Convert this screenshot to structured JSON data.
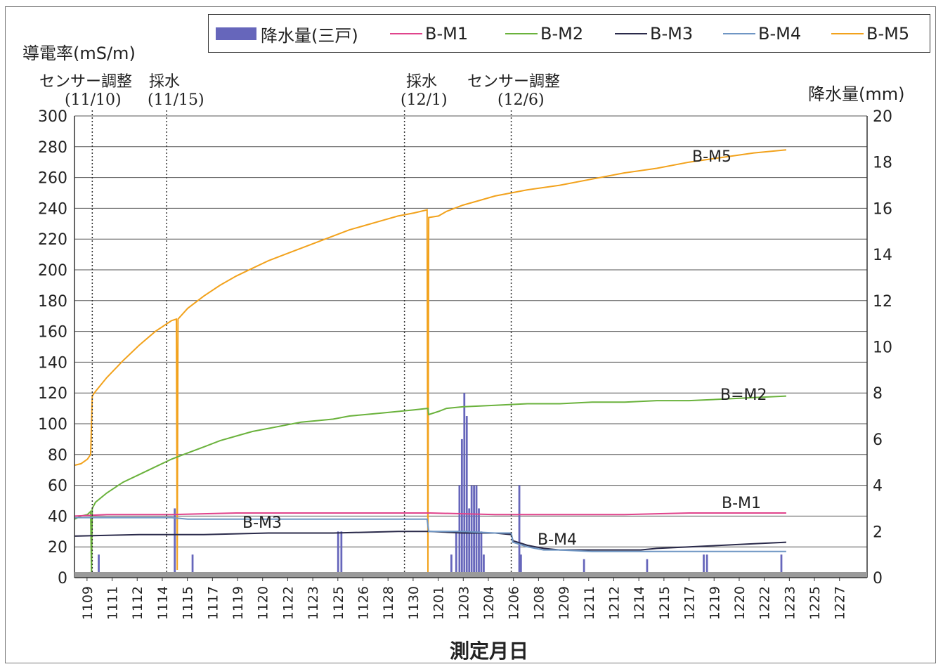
{
  "chart_data": {
    "type": "line",
    "title": "",
    "ylabel": "導電率(mS/m)",
    "y2label": "降水量(mm)",
    "xlabel": "測定月日",
    "ylim": [
      0,
      300
    ],
    "y2lim": [
      0,
      20
    ],
    "yticks": [
      0,
      20,
      40,
      60,
      80,
      100,
      120,
      140,
      160,
      180,
      200,
      220,
      240,
      260,
      280,
      300
    ],
    "y2ticks": [
      0,
      2,
      4,
      6,
      8,
      10,
      12,
      14,
      16,
      18,
      20
    ],
    "x_categories": [
      "1109",
      "1111",
      "1112",
      "1114",
      "1115",
      "1117",
      "1119",
      "1120",
      "1122",
      "1123",
      "1125",
      "1126",
      "1128",
      "1130",
      "1201",
      "1203",
      "1204",
      "1206",
      "1208",
      "1209",
      "1211",
      "1212",
      "1214",
      "1215",
      "1217",
      "1219",
      "1220",
      "1222",
      "1223",
      "1225",
      "1227"
    ],
    "x_domain": [
      0,
      49
    ],
    "grid": true,
    "legend_position": "top",
    "legend": [
      {
        "name": "降水量(三戸)",
        "kind": "bar",
        "color": "#6666bb"
      },
      {
        "name": "B-M1",
        "kind": "line",
        "color": "#e0448c"
      },
      {
        "name": "B-M2",
        "kind": "line",
        "color": "#6ab23c"
      },
      {
        "name": "B-M3",
        "kind": "line",
        "color": "#2a2a4a"
      },
      {
        "name": "B-M4",
        "kind": "line",
        "color": "#6f96c4"
      },
      {
        "name": "B-M5",
        "kind": "line",
        "color": "#f2a21c"
      }
    ],
    "series": [
      {
        "name": "B-M5",
        "color": "#f2a21c",
        "points": [
          [
            0,
            73
          ],
          [
            0.4,
            74
          ],
          [
            0.8,
            77
          ],
          [
            1.0,
            80
          ],
          [
            1.1,
            118
          ],
          [
            1.3,
            121
          ],
          [
            2,
            130
          ],
          [
            3,
            141
          ],
          [
            4,
            151
          ],
          [
            5,
            160
          ],
          [
            6,
            167
          ],
          [
            6.3,
            168
          ],
          [
            6.35,
            5
          ],
          [
            6.4,
            168
          ],
          [
            7,
            175
          ],
          [
            8,
            183
          ],
          [
            9,
            190
          ],
          [
            10,
            196
          ],
          [
            11,
            201
          ],
          [
            12,
            206
          ],
          [
            13,
            210
          ],
          [
            14,
            214
          ],
          [
            15,
            218
          ],
          [
            16,
            222
          ],
          [
            17,
            226
          ],
          [
            18,
            229
          ],
          [
            19,
            232
          ],
          [
            20,
            235
          ],
          [
            21,
            237
          ],
          [
            21.8,
            239
          ],
          [
            21.85,
            3
          ],
          [
            21.9,
            234
          ],
          [
            22.5,
            235
          ],
          [
            23,
            238
          ],
          [
            24,
            242
          ],
          [
            25,
            245
          ],
          [
            26,
            248
          ],
          [
            27,
            250
          ],
          [
            28,
            252
          ],
          [
            30,
            255
          ],
          [
            32,
            259
          ],
          [
            34,
            263
          ],
          [
            36,
            266
          ],
          [
            38,
            270
          ],
          [
            40,
            273
          ],
          [
            42,
            276
          ],
          [
            44,
            278
          ]
        ]
      },
      {
        "name": "B-M2",
        "color": "#6ab23c",
        "points": [
          [
            0,
            38
          ],
          [
            0.4,
            40
          ],
          [
            0.8,
            41
          ],
          [
            1.0,
            43
          ],
          [
            1.05,
            3
          ],
          [
            1.1,
            45
          ],
          [
            1.3,
            49
          ],
          [
            2,
            55
          ],
          [
            3,
            62
          ],
          [
            4,
            67
          ],
          [
            5,
            72
          ],
          [
            6,
            77
          ],
          [
            7,
            81
          ],
          [
            8,
            85
          ],
          [
            9,
            89
          ],
          [
            10,
            92
          ],
          [
            11,
            95
          ],
          [
            12,
            97
          ],
          [
            13,
            99
          ],
          [
            14,
            101
          ],
          [
            15,
            102
          ],
          [
            16,
            103
          ],
          [
            17,
            105
          ],
          [
            18,
            106
          ],
          [
            19,
            107
          ],
          [
            20,
            108
          ],
          [
            21,
            109
          ],
          [
            21.85,
            110
          ],
          [
            21.9,
            106
          ],
          [
            22.5,
            108
          ],
          [
            23,
            110
          ],
          [
            24,
            111
          ],
          [
            26,
            112
          ],
          [
            28,
            113
          ],
          [
            30,
            113
          ],
          [
            32,
            114
          ],
          [
            34,
            114
          ],
          [
            36,
            115
          ],
          [
            38,
            115
          ],
          [
            40,
            116
          ],
          [
            42,
            117
          ],
          [
            44,
            118
          ]
        ]
      },
      {
        "name": "B-M1",
        "color": "#e0448c",
        "points": [
          [
            0,
            40
          ],
          [
            2,
            41
          ],
          [
            6,
            41
          ],
          [
            10,
            42
          ],
          [
            14,
            42
          ],
          [
            18,
            42
          ],
          [
            22,
            42
          ],
          [
            26,
            41
          ],
          [
            30,
            41
          ],
          [
            34,
            41
          ],
          [
            38,
            42
          ],
          [
            42,
            42
          ],
          [
            44,
            42
          ]
        ]
      },
      {
        "name": "B-M3",
        "color": "#2a2a4a",
        "points": [
          [
            0,
            27
          ],
          [
            4,
            28
          ],
          [
            8,
            28
          ],
          [
            12,
            29
          ],
          [
            16,
            29
          ],
          [
            20,
            30
          ],
          [
            22,
            30
          ],
          [
            24,
            29
          ],
          [
            26,
            29
          ],
          [
            27,
            28
          ],
          [
            27.1,
            24
          ],
          [
            28,
            21
          ],
          [
            29,
            19
          ],
          [
            30,
            18
          ],
          [
            32,
            18
          ],
          [
            34,
            18
          ],
          [
            35,
            18
          ],
          [
            36,
            19
          ],
          [
            38,
            20
          ],
          [
            40,
            21
          ],
          [
            42,
            22
          ],
          [
            44,
            23
          ]
        ]
      },
      {
        "name": "B-M4",
        "color": "#6f96c4",
        "points": [
          [
            0,
            39
          ],
          [
            2,
            39
          ],
          [
            4,
            39
          ],
          [
            6,
            39
          ],
          [
            7,
            38
          ],
          [
            10,
            38
          ],
          [
            14,
            38
          ],
          [
            18,
            38
          ],
          [
            21.8,
            38
          ],
          [
            21.9,
            30
          ],
          [
            24,
            30
          ],
          [
            26,
            29
          ],
          [
            27,
            29
          ],
          [
            27.1,
            23
          ],
          [
            28,
            20
          ],
          [
            29,
            18
          ],
          [
            30,
            18
          ],
          [
            32,
            17
          ],
          [
            34,
            17
          ],
          [
            36,
            17
          ],
          [
            38,
            17
          ],
          [
            40,
            17
          ],
          [
            42,
            17
          ],
          [
            44,
            17
          ]
        ]
      }
    ],
    "bars": {
      "name": "降水量(三戸)",
      "color": "#6666bb",
      "values": [
        [
          1.5,
          1.0
        ],
        [
          6.2,
          3.0
        ],
        [
          7.3,
          1.0
        ],
        [
          16.3,
          2.0
        ],
        [
          16.5,
          2.0
        ],
        [
          23.3,
          1.0
        ],
        [
          23.6,
          2.0
        ],
        [
          23.8,
          4.0
        ],
        [
          23.95,
          6.0
        ],
        [
          24.1,
          8.0
        ],
        [
          24.25,
          7.0
        ],
        [
          24.4,
          3.0
        ],
        [
          24.55,
          4.0
        ],
        [
          24.7,
          4.0
        ],
        [
          24.85,
          4.0
        ],
        [
          25.0,
          3.0
        ],
        [
          25.15,
          2.0
        ],
        [
          25.3,
          1.0
        ],
        [
          27.5,
          4.0
        ],
        [
          27.6,
          1.0
        ],
        [
          31.5,
          0.8
        ],
        [
          35.4,
          0.8
        ],
        [
          38.9,
          1.0
        ],
        [
          39.1,
          1.0
        ],
        [
          43.7,
          1.0
        ]
      ]
    },
    "annotations": [
      {
        "text": "センサー調整",
        "x": 1.1
      },
      {
        "text": "(11/10)",
        "x": 1.1
      },
      {
        "text": "採水",
        "x": 5.7
      },
      {
        "text": "(11/15)",
        "x": 5.7
      },
      {
        "text": "採水",
        "x": 20.4
      },
      {
        "text": "(12/1)",
        "x": 20.4
      },
      {
        "text": "センサー調整",
        "x": 27.0
      },
      {
        "text": "(12/6)",
        "x": 27.0
      }
    ],
    "series_labels": [
      {
        "text": "B-M5"
      },
      {
        "text": "B=M2"
      },
      {
        "text": "B-M1"
      },
      {
        "text": "B-M3"
      },
      {
        "text": "B-M4"
      }
    ]
  }
}
